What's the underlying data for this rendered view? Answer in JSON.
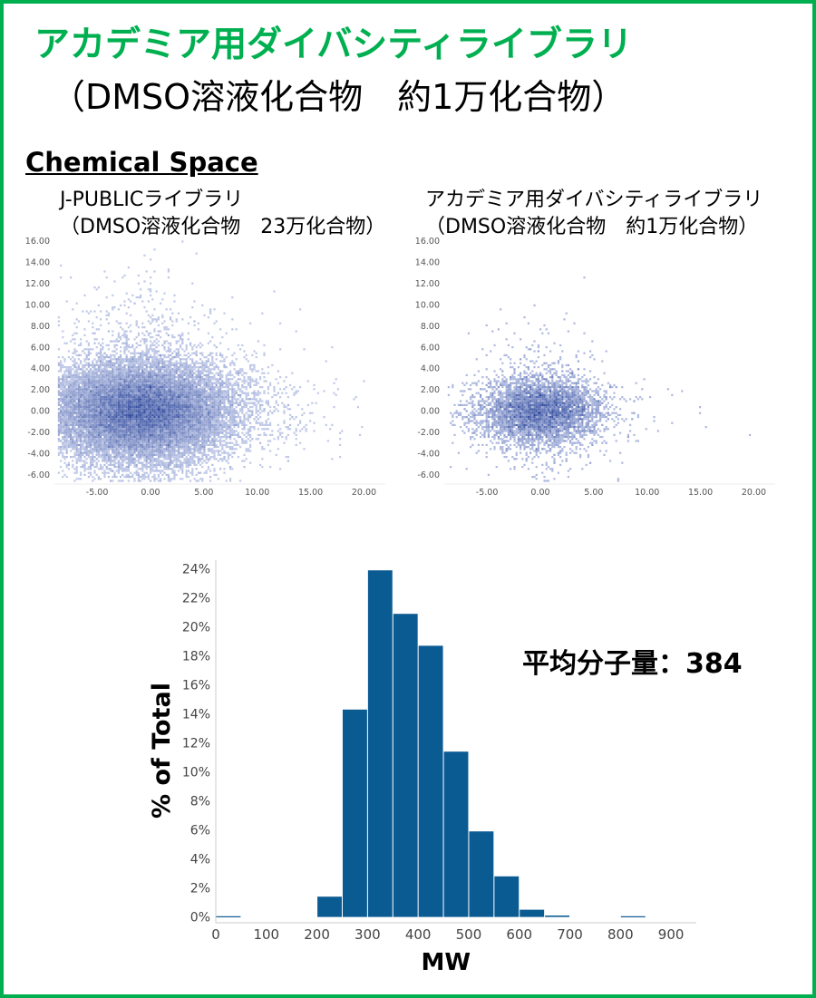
{
  "header": {
    "title": "アカデミア用ダイバシティライブラリ",
    "subtitle": "（DMSO溶液化合物　約1万化合物）"
  },
  "section_heading": "Chemical Space",
  "panels": [
    {
      "title_line1": "J-PUBLICライブラリ",
      "title_line2": "（DMSO溶液化合物　23万化合物）"
    },
    {
      "title_line1": "アカデミア用ダイバシティライブラリ",
      "title_line2": "（DMSO溶液化合物　約1万化合物）"
    }
  ],
  "average_mw_label": "平均分子量：384",
  "colors": {
    "accent_green": "#00b050",
    "bar_blue": "#0b5b93",
    "density_light": "#dfe5f7",
    "density_dark": "#1f3a93"
  },
  "chart_data": [
    {
      "type": "heatmap",
      "xlim": [
        -9,
        22
      ],
      "ylim": [
        -6.5,
        16.5
      ],
      "x_ticks": [
        "-5.00",
        "0.00",
        "5.00",
        "10.00",
        "15.00",
        "20.00"
      ],
      "y_ticks": [
        "16.00",
        "14.00",
        "12.00",
        "10.00",
        "8.00",
        "6.00",
        "4.00",
        "2.00",
        "0.00",
        "-2.00",
        "-4.00",
        "-6.00"
      ],
      "density_center": [
        -1.0,
        0.0
      ],
      "density_spread": [
        4.0,
        2.2
      ],
      "grid": false
    },
    {
      "type": "heatmap",
      "xlim": [
        -9,
        22
      ],
      "ylim": [
        -6.5,
        16.5
      ],
      "x_ticks": [
        "-5.00",
        "0.00",
        "5.00",
        "10.00",
        "15.00",
        "20.00"
      ],
      "y_ticks": [
        "16.00",
        "14.00",
        "12.00",
        "10.00",
        "8.00",
        "6.00",
        "4.00",
        "2.00",
        "0.00",
        "-2.00",
        "-4.00",
        "-6.00"
      ],
      "density_center": [
        0.0,
        0.0
      ],
      "density_spread": [
        2.8,
        1.6
      ],
      "grid": false
    },
    {
      "type": "bar",
      "bin_starts": [
        0,
        50,
        100,
        150,
        200,
        250,
        300,
        350,
        400,
        450,
        500,
        550,
        600,
        650,
        700,
        750,
        800,
        850
      ],
      "bin_width": 50,
      "values": [
        0.05,
        0,
        0,
        0,
        1.4,
        14.3,
        23.9,
        20.9,
        18.7,
        11.4,
        5.9,
        2.8,
        0.5,
        0.1,
        0,
        0,
        0.05,
        0
      ],
      "xlabel": "MW",
      "ylabel": "% of Total",
      "xlim": [
        0,
        950
      ],
      "ylim": [
        -0.4,
        24.6
      ],
      "x_ticks": [
        "0",
        "100",
        "200",
        "300",
        "400",
        "500",
        "600",
        "700",
        "800",
        "900"
      ],
      "y_ticks": [
        "0%",
        "2%",
        "4%",
        "6%",
        "8%",
        "10%",
        "12%",
        "14%",
        "16%",
        "18%",
        "20%",
        "22%",
        "24%"
      ],
      "grid": false
    }
  ]
}
